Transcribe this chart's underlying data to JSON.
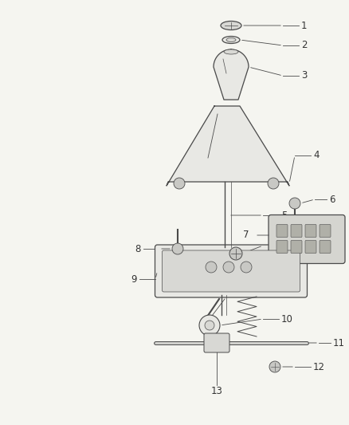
{
  "background_color": "#f5f5f0",
  "line_color": "#4a4a4a",
  "label_color": "#333333",
  "label_fontsize": 8.5,
  "part_fill": "#e8e8e4",
  "part_fill2": "#d8d8d4",
  "bolt_fill": "#c8c8c4"
}
